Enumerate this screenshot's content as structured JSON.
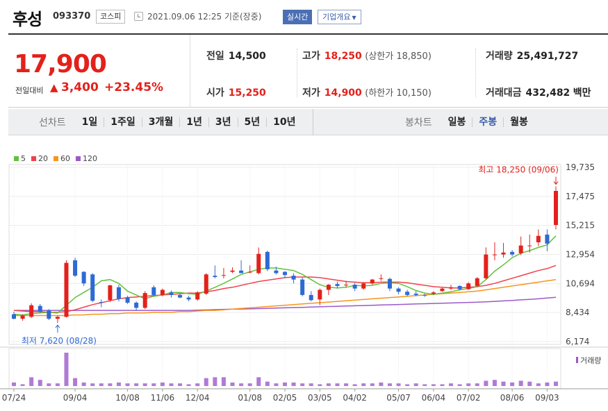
{
  "header": {
    "name": "후성",
    "code": "093370",
    "market": "코스피",
    "time": "2021.09.06 12:25  기준(장중)",
    "realtime": "실시간",
    "overview": "기업개요"
  },
  "price": {
    "current": "17,900",
    "change_label": "전일대비",
    "change": "3,400",
    "change_pct": "+23.45%",
    "prev_label": "전일",
    "prev": "14,500",
    "high_label": "고가",
    "high": "18,250",
    "upper_limit": "(상한가 18,850)",
    "volume_label": "거래량",
    "volume": "25,491,727",
    "open_label": "시가",
    "open": "15,250",
    "low_label": "저가",
    "low": "14,900",
    "lower_limit": "(하한가 10,150)",
    "amount_label": "거래대금",
    "amount": "432,482",
    "amount_unit": "백만"
  },
  "tabs": {
    "line_label": "선차트",
    "line_items": [
      "1일",
      "1주일",
      "3개월",
      "1년",
      "3년",
      "5년",
      "10년"
    ],
    "candle_label": "봉차트",
    "candle_items": [
      "일봉",
      "주봉",
      "월봉"
    ],
    "candle_selected": "주봉"
  },
  "colors": {
    "up": "#e3211c",
    "down": "#2d6ad4",
    "ma5": "#62c13c",
    "ma20": "#f0414b",
    "ma60": "#f7941d",
    "ma120": "#9b59c8"
  },
  "chart_data": {
    "type": "candlestick",
    "legend": [
      {
        "name": "5",
        "color": "#62c13c"
      },
      {
        "name": "20",
        "color": "#f0414b"
      },
      {
        "name": "60",
        "color": "#f7941d"
      },
      {
        "name": "120",
        "color": "#9b59c8"
      }
    ],
    "yticks": [
      "19,735",
      "17,475",
      "15,215",
      "12,954",
      "10,694",
      "8,434",
      "6,174"
    ],
    "ytick_values": [
      19735,
      17475,
      15215,
      12954,
      10694,
      8434,
      6174
    ],
    "ylim": [
      6174,
      19735
    ],
    "x_labels": [
      "07/24",
      "09/04",
      "10/08",
      "11/06",
      "12/04",
      "01/08",
      "02/05",
      "03/05",
      "04/02",
      "05/07",
      "06/04",
      "07/02",
      "08/06",
      "09/03"
    ],
    "x_label_index": [
      0,
      7,
      13,
      17,
      21,
      27,
      31,
      35,
      39,
      44,
      48,
      52,
      57,
      61
    ],
    "max_annotation": "최고 18,250 (09/06)",
    "min_annotation": "최저 7,620 (08/28)",
    "volume_legend": "거래량",
    "candles": [
      {
        "o": 8300,
        "h": 8500,
        "l": 7900,
        "c": 7950
      },
      {
        "o": 7950,
        "h": 8300,
        "l": 7800,
        "c": 8200
      },
      {
        "o": 8100,
        "h": 9150,
        "l": 8000,
        "c": 9000
      },
      {
        "o": 8950,
        "h": 9100,
        "l": 8400,
        "c": 8500
      },
      {
        "o": 8600,
        "h": 8700,
        "l": 7850,
        "c": 7950
      },
      {
        "o": 7950,
        "h": 8200,
        "l": 7620,
        "c": 8100
      },
      {
        "o": 8100,
        "h": 12500,
        "l": 8050,
        "c": 12300
      },
      {
        "o": 12500,
        "h": 12700,
        "l": 11200,
        "c": 11300
      },
      {
        "o": 11600,
        "h": 11650,
        "l": 10500,
        "c": 10700
      },
      {
        "o": 11400,
        "h": 11500,
        "l": 9250,
        "c": 9350
      },
      {
        "o": 9250,
        "h": 9450,
        "l": 8850,
        "c": 9200
      },
      {
        "o": 9400,
        "h": 10600,
        "l": 9250,
        "c": 10550
      },
      {
        "o": 10400,
        "h": 10600,
        "l": 9300,
        "c": 9500
      },
      {
        "o": 9600,
        "h": 9750,
        "l": 9100,
        "c": 9200
      },
      {
        "o": 9200,
        "h": 9300,
        "l": 8600,
        "c": 8800
      },
      {
        "o": 8800,
        "h": 10100,
        "l": 8700,
        "c": 9950
      },
      {
        "o": 10400,
        "h": 10550,
        "l": 9700,
        "c": 9800
      },
      {
        "o": 9800,
        "h": 10300,
        "l": 9700,
        "c": 10200
      },
      {
        "o": 10000,
        "h": 10150,
        "l": 9600,
        "c": 9800
      },
      {
        "o": 9800,
        "h": 9900,
        "l": 9550,
        "c": 9600
      },
      {
        "o": 9600,
        "h": 9750,
        "l": 9300,
        "c": 9450
      },
      {
        "o": 9450,
        "h": 10100,
        "l": 9350,
        "c": 10000
      },
      {
        "o": 9900,
        "h": 11500,
        "l": 9800,
        "c": 11400
      },
      {
        "o": 11300,
        "h": 12100,
        "l": 11100,
        "c": 11200
      },
      {
        "o": 11300,
        "h": 11900,
        "l": 11100,
        "c": 11350
      },
      {
        "o": 11600,
        "h": 11950,
        "l": 11500,
        "c": 11700
      },
      {
        "o": 11700,
        "h": 12500,
        "l": 11600,
        "c": 11500
      },
      {
        "o": 11550,
        "h": 12100,
        "l": 11500,
        "c": 11600
      },
      {
        "o": 11500,
        "h": 13500,
        "l": 11400,
        "c": 13000
      },
      {
        "o": 13150,
        "h": 13250,
        "l": 11650,
        "c": 11800
      },
      {
        "o": 11700,
        "h": 12000,
        "l": 11400,
        "c": 11500
      },
      {
        "o": 11600,
        "h": 11650,
        "l": 11100,
        "c": 11350
      },
      {
        "o": 11300,
        "h": 11500,
        "l": 10700,
        "c": 11000
      },
      {
        "o": 11000,
        "h": 11150,
        "l": 9700,
        "c": 9800
      },
      {
        "o": 9800,
        "h": 10100,
        "l": 9300,
        "c": 9400
      },
      {
        "o": 9450,
        "h": 10300,
        "l": 9000,
        "c": 10200
      },
      {
        "o": 10200,
        "h": 10650,
        "l": 9800,
        "c": 10600
      },
      {
        "o": 10650,
        "h": 10850,
        "l": 10300,
        "c": 10500
      },
      {
        "o": 10600,
        "h": 10900,
        "l": 10400,
        "c": 10600
      },
      {
        "o": 10600,
        "h": 10750,
        "l": 10100,
        "c": 10300
      },
      {
        "o": 10300,
        "h": 10800,
        "l": 10200,
        "c": 10700
      },
      {
        "o": 10700,
        "h": 11050,
        "l": 10600,
        "c": 11000
      },
      {
        "o": 11050,
        "h": 11400,
        "l": 10900,
        "c": 11100
      },
      {
        "o": 11050,
        "h": 11150,
        "l": 10100,
        "c": 10300
      },
      {
        "o": 10300,
        "h": 10400,
        "l": 9850,
        "c": 10050
      },
      {
        "o": 10050,
        "h": 10200,
        "l": 9700,
        "c": 9800
      },
      {
        "o": 9900,
        "h": 10100,
        "l": 9700,
        "c": 9800
      },
      {
        "o": 9800,
        "h": 9900,
        "l": 9650,
        "c": 9750
      },
      {
        "o": 9900,
        "h": 10100,
        "l": 9800,
        "c": 10000
      },
      {
        "o": 10100,
        "h": 10350,
        "l": 10050,
        "c": 10300
      },
      {
        "o": 10300,
        "h": 10600,
        "l": 10200,
        "c": 10400
      },
      {
        "o": 10500,
        "h": 10550,
        "l": 10150,
        "c": 10250
      },
      {
        "o": 10250,
        "h": 10800,
        "l": 10200,
        "c": 10700
      },
      {
        "o": 10500,
        "h": 11200,
        "l": 10400,
        "c": 11100
      },
      {
        "o": 11100,
        "h": 13500,
        "l": 11000,
        "c": 12950
      },
      {
        "o": 12950,
        "h": 13900,
        "l": 12500,
        "c": 12950
      },
      {
        "o": 12950,
        "h": 13850,
        "l": 12700,
        "c": 13100
      },
      {
        "o": 13150,
        "h": 13300,
        "l": 12800,
        "c": 12950
      },
      {
        "o": 13050,
        "h": 14350,
        "l": 12900,
        "c": 13650
      },
      {
        "o": 13650,
        "h": 14500,
        "l": 13100,
        "c": 13650
      },
      {
        "o": 13900,
        "h": 14900,
        "l": 13600,
        "c": 14400
      },
      {
        "o": 14500,
        "h": 14900,
        "l": 13200,
        "c": 13800
      },
      {
        "o": 15250,
        "h": 18250,
        "l": 14900,
        "c": 17900
      }
    ],
    "ma5": [
      8300,
      8250,
      8350,
      8400,
      8450,
      8400,
      9000,
      9600,
      10000,
      10400,
      10900,
      11000,
      10700,
      10100,
      9800,
      9500,
      9700,
      9800,
      10000,
      10000,
      9900,
      9850,
      10100,
      10400,
      10700,
      11050,
      11400,
      11600,
      11800,
      11900,
      11900,
      11800,
      11700,
      11400,
      11000,
      10600,
      10400,
      10350,
      10400,
      10550,
      10500,
      10550,
      10700,
      10750,
      10700,
      10450,
      10150,
      9950,
      9850,
      9950,
      10050,
      10200,
      10300,
      10450,
      11000,
      11650,
      12150,
      12700,
      13050,
      13250,
      13500,
      13700,
      14400
    ],
    "ma20": [
      8600,
      8550,
      8500,
      8500,
      8450,
      8450,
      8500,
      8650,
      8850,
      9050,
      9200,
      9350,
      9500,
      9600,
      9650,
      9700,
      9750,
      9800,
      9850,
      9900,
      9950,
      9950,
      10050,
      10150,
      10300,
      10400,
      10550,
      10700,
      10850,
      10950,
      11050,
      11150,
      11200,
      11200,
      11200,
      11150,
      11050,
      10950,
      10850,
      10800,
      10750,
      10750,
      10800,
      10800,
      10800,
      10750,
      10650,
      10550,
      10450,
      10400,
      10350,
      10350,
      10400,
      10450,
      10550,
      10700,
      10900,
      11100,
      11300,
      11500,
      11700,
      11850,
      12100
    ],
    "ma60": [
      8200,
      8200,
      8200,
      8200,
      8200,
      8200,
      8200,
      8250,
      8250,
      8300,
      8300,
      8350,
      8350,
      8400,
      8400,
      8400,
      8450,
      8450,
      8450,
      8500,
      8500,
      8550,
      8600,
      8600,
      8650,
      8700,
      8750,
      8800,
      8850,
      8900,
      8950,
      9000,
      9050,
      9100,
      9150,
      9200,
      9250,
      9300,
      9350,
      9400,
      9450,
      9500,
      9550,
      9600,
      9650,
      9700,
      9750,
      9800,
      9850,
      9900,
      9950,
      10000,
      10050,
      10100,
      10200,
      10300,
      10400,
      10500,
      10600,
      10700,
      10800,
      10900,
      11000
    ],
    "ma120": [
      8600,
      8600,
      8600,
      8600,
      8600,
      8600,
      8600,
      8600,
      8600,
      8600,
      8600,
      8600,
      8600,
      8600,
      8600,
      8600,
      8600,
      8600,
      8600,
      8600,
      8600,
      8620,
      8640,
      8660,
      8680,
      8700,
      8710,
      8720,
      8740,
      8760,
      8780,
      8800,
      8820,
      8840,
      8860,
      8880,
      8900,
      8920,
      8940,
      8960,
      8980,
      9000,
      9020,
      9040,
      9060,
      9080,
      9100,
      9120,
      9140,
      9160,
      9180,
      9200,
      9220,
      9240,
      9270,
      9300,
      9340,
      9380,
      9420,
      9460,
      9500,
      9560,
      9620
    ],
    "volume": [
      4,
      2,
      10,
      7,
      3,
      3,
      38,
      9,
      4,
      3,
      3,
      3,
      4,
      3,
      3,
      3,
      3,
      4,
      3,
      3,
      2,
      3,
      9,
      10,
      10,
      4,
      3,
      3,
      10,
      5,
      3,
      4,
      4,
      3,
      3,
      2,
      3,
      3,
      3,
      2,
      3,
      3,
      4,
      3,
      3,
      2,
      3,
      2,
      2,
      2,
      3,
      2,
      3,
      3,
      6,
      7,
      5,
      4,
      6,
      5,
      3,
      4,
      5
    ]
  }
}
